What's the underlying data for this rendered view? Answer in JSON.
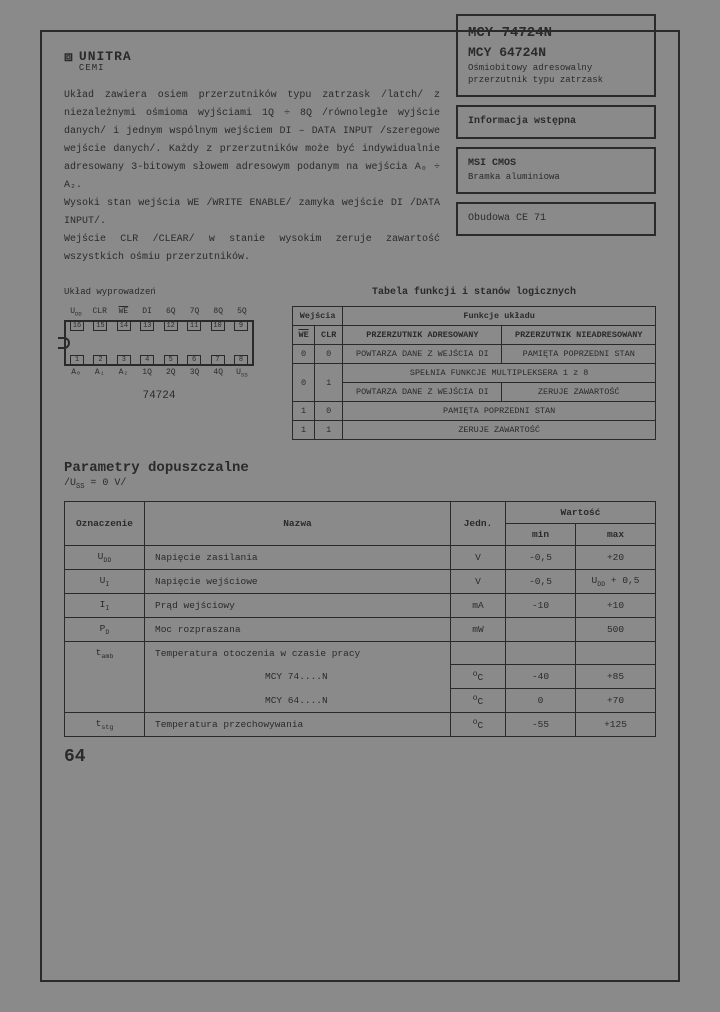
{
  "logo": {
    "brand": "UNITRA",
    "sub": "CEMI",
    "icon": "⧈"
  },
  "intro": "Układ zawiera osiem przerzutników typu zatrzask /latch/ z niezależnymi ośmioma wyjściami 1Q ÷ 8Q /równoległe wyjście danych/ i jednym wspólnym wejściem DI – DATA INPUT /szeregowe wejście danych/. Każdy z przerzutników może być indywidualnie adresowany 3-bitowym słowem adresowym podanym na wejścia A₀ ÷ A₂.\nWysoki stan wejścia WE /WRITE ENABLE/ zamyka wejście DI /DATA INPUT/.\nWejście CLR /CLEAR/ w stanie wysokim zeruje zawartość wszystkich ośmiu przerzutników.",
  "sidebox1": {
    "l1": "MCY 74724N",
    "l2": "MCY 64724N",
    "l3": "Ośmiobitowy adresowalny",
    "l4": "przerzutnik typu zatrzask"
  },
  "sidebox2": "Informacja wstępna",
  "sidebox3": {
    "l1": "MSI CMOS",
    "l2": "Bramka aluminiowa"
  },
  "sidebox4": "Obudowa CE 71",
  "pinout_heading": "Układ wyprowadzeń",
  "chip_label": "74724",
  "pins": {
    "top_labels": [
      "U_DD",
      "CLR",
      "WE",
      "DI",
      "6Q",
      "7Q",
      "8Q",
      "5Q"
    ],
    "top_nums": [
      "16",
      "15",
      "14",
      "13",
      "12",
      "11",
      "10",
      "9"
    ],
    "bot_nums": [
      "1",
      "2",
      "3",
      "4",
      "5",
      "6",
      "7",
      "8"
    ],
    "bot_labels": [
      "A₀",
      "A₁",
      "A₂",
      "1Q",
      "2Q",
      "3Q",
      "4Q",
      "U_SS"
    ]
  },
  "func_title": "Tabela funkcji i stanów logicznych",
  "func_headers": {
    "inputs": "Wejścia",
    "func": "Funkcje układu",
    "we": "WE",
    "clr": "CLR",
    "adr": "PRZERZUTNIK ADRESOWANY",
    "nadr": "PRZERZUTNIK NIEADRESOWANY"
  },
  "func_rows": [
    {
      "we": "0",
      "clr": "0",
      "adr": "POWTARZA DANE Z WEJŚCIA DI",
      "nadr": "PAMIĘTA POPRZEDNI STAN"
    },
    {
      "we": "0",
      "clr": "1",
      "mux": "SPEŁNIA FUNKCJE MULTIPLEKSERA 1 z 8",
      "adr": "POWTARZA DANE Z WEJŚCIA DI",
      "nadr": "ZERUJE ZAWARTOŚĆ"
    },
    {
      "we": "1",
      "clr": "0",
      "full": "PAMIĘTA POPRZEDNI STAN"
    },
    {
      "we": "1",
      "clr": "1",
      "full": "ZERUJE ZAWARTOŚĆ"
    }
  ],
  "params_heading": "Parametry dopuszczalne",
  "params_sub": "/U_SS = 0 V/",
  "param_headers": {
    "sym": "Oznaczenie",
    "name": "Nazwa",
    "unit": "Jedn.",
    "val": "Wartość",
    "min": "min",
    "max": "max"
  },
  "param_rows": [
    {
      "sym": "U_DD",
      "name": "Napięcie zasilania",
      "unit": "V",
      "min": "-0,5",
      "max": "+20"
    },
    {
      "sym": "U_I",
      "name": "Napięcie wejściowe",
      "unit": "V",
      "min": "-0,5",
      "max": "U_DD + 0,5"
    },
    {
      "sym": "I_I",
      "name": "Prąd wejściowy",
      "unit": "mA",
      "min": "-10",
      "max": "+10"
    },
    {
      "sym": "P_D",
      "name": "Moc rozpraszana",
      "unit": "mW",
      "min": "",
      "max": "500"
    },
    {
      "sym": "t_amb",
      "name": "Temperatura otoczenia w czasie pracy",
      "unit": "",
      "min": "",
      "max": ""
    },
    {
      "sym": "",
      "name": "MCY 74....N",
      "unit": "°C",
      "min": "-40",
      "max": "+85"
    },
    {
      "sym": "",
      "name": "MCY 64....N",
      "unit": "°C",
      "min": "0",
      "max": "+70"
    },
    {
      "sym": "t_stg",
      "name": "Temperatura przechowywania",
      "unit": "°C",
      "min": "-55",
      "max": "+125"
    }
  ],
  "page_number": "64",
  "colors": {
    "bg": "#8a8a8a",
    "ink": "#2a2a2a"
  }
}
